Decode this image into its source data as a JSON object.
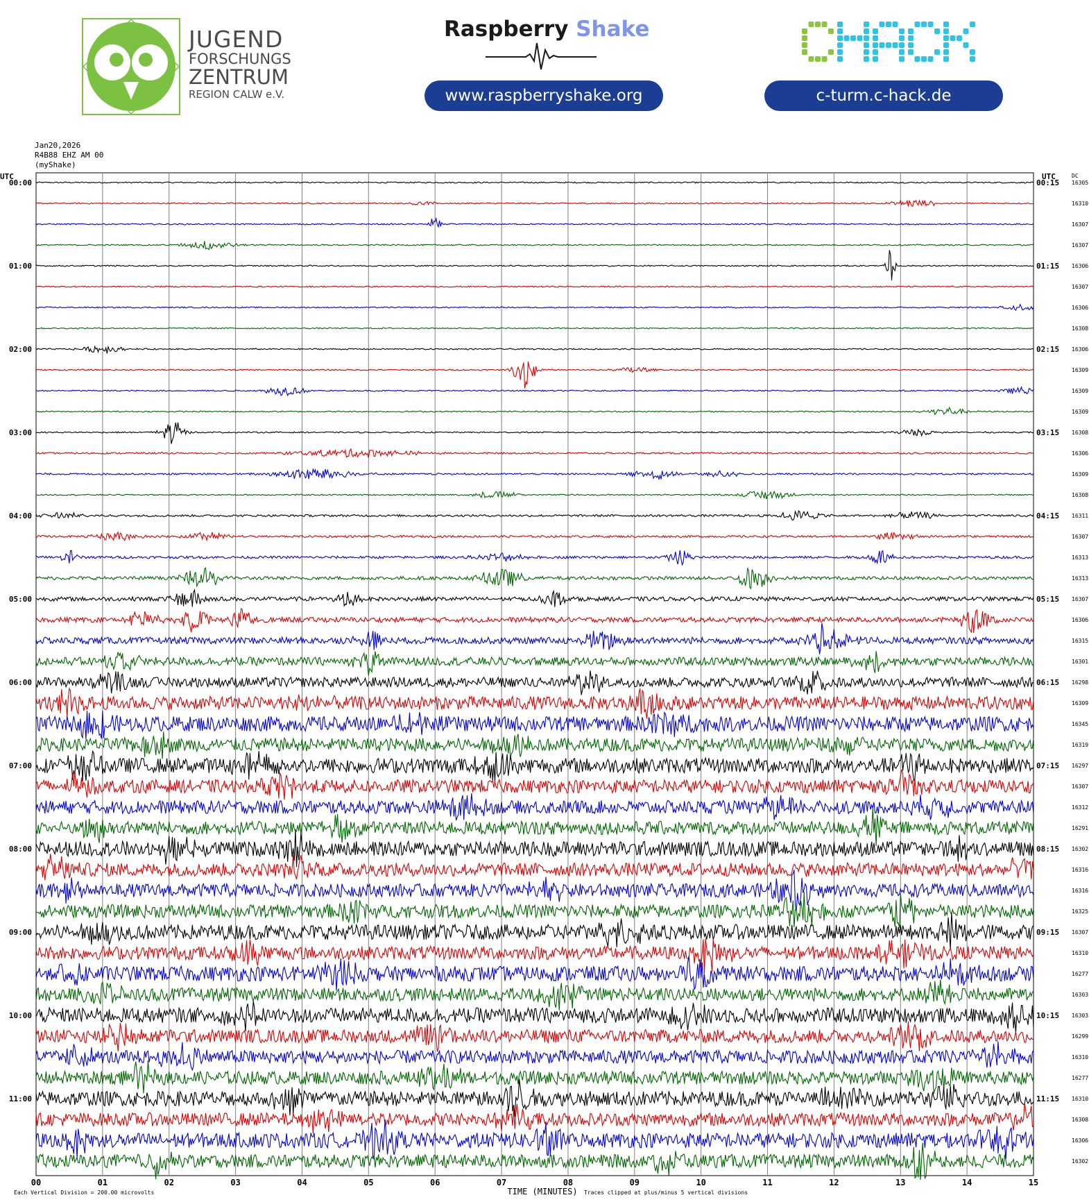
{
  "header": {
    "jfz": {
      "lines": [
        "JUGEND",
        "FORSCHUNGS",
        "ZENTRUM",
        "REGION CALW e.V."
      ]
    },
    "raspberry": {
      "word1": "Raspberry",
      "word2": "Shake",
      "url": "www.raspberryshake.org"
    },
    "chack": {
      "logo_text": "CHACK",
      "url": "c-turm.c-hack.de"
    },
    "colors": {
      "pill": "#1b3d94",
      "jfz_green": "#7cc142",
      "chack_green": "#8cc63f",
      "chack_cyan": "#2ec4e6",
      "shake_blue": "#7f95e8"
    }
  },
  "chart_data": {
    "type": "line",
    "subtype": "helicorder",
    "info_lines": [
      "Jan20,2026",
      "R4B88 EHZ AM 00",
      "(myShake)"
    ],
    "left_axis_label": "UTC",
    "right_axis_label": "UTC",
    "dc_label": "DC",
    "xlabel": "TIME (MINUTES)",
    "x_ticks": [
      "00",
      "01",
      "02",
      "03",
      "04",
      "05",
      "06",
      "07",
      "08",
      "09",
      "10",
      "11",
      "12",
      "13",
      "14",
      "15"
    ],
    "xlim": [
      0,
      15
    ],
    "grid": true,
    "trace_colors": [
      "#000000",
      "#dd0000",
      "#0000dd",
      "#006600"
    ],
    "rows": [
      {
        "left": "00:00",
        "right": "00:15",
        "dc": "16305",
        "noise": 0.15,
        "events": []
      },
      {
        "left": "",
        "right": "",
        "dc": "16310",
        "noise": 0.15,
        "events": [
          [
            5.8,
            0.6,
            0.3
          ],
          [
            13.2,
            0.9,
            0.6
          ]
        ]
      },
      {
        "left": "",
        "right": "",
        "dc": "16307",
        "noise": 0.15,
        "events": [
          [
            6.0,
            1.8,
            0.15
          ]
        ]
      },
      {
        "left": "",
        "right": "",
        "dc": "16307",
        "noise": 0.15,
        "events": [
          [
            2.6,
            1.2,
            0.6
          ]
        ]
      },
      {
        "left": "01:00",
        "right": "01:15",
        "dc": "16306",
        "noise": 0.15,
        "events": [
          [
            12.85,
            4.5,
            0.1
          ]
        ]
      },
      {
        "left": "",
        "right": "",
        "dc": "16307",
        "noise": 0.15,
        "events": []
      },
      {
        "left": "",
        "right": "",
        "dc": "16306",
        "noise": 0.15,
        "events": [
          [
            14.8,
            0.8,
            0.5
          ]
        ]
      },
      {
        "left": "",
        "right": "",
        "dc": "16308",
        "noise": 0.15,
        "events": []
      },
      {
        "left": "02:00",
        "right": "02:15",
        "dc": "16306",
        "noise": 0.15,
        "events": [
          [
            1.0,
            1.0,
            0.5
          ]
        ]
      },
      {
        "left": "",
        "right": "",
        "dc": "16309",
        "noise": 0.15,
        "events": [
          [
            7.35,
            5.0,
            0.25
          ],
          [
            9.0,
            0.8,
            0.4
          ]
        ]
      },
      {
        "left": "",
        "right": "",
        "dc": "16309",
        "noise": 0.15,
        "events": [
          [
            3.75,
            1.2,
            0.5
          ],
          [
            14.8,
            0.8,
            0.5
          ]
        ]
      },
      {
        "left": "",
        "right": "",
        "dc": "16309",
        "noise": 0.15,
        "events": [
          [
            13.7,
            1.0,
            0.5
          ]
        ]
      },
      {
        "left": "03:00",
        "right": "03:15",
        "dc": "16308",
        "noise": 0.15,
        "events": [
          [
            2.05,
            3.0,
            0.3
          ],
          [
            13.2,
            0.8,
            0.5
          ]
        ]
      },
      {
        "left": "",
        "right": "",
        "dc": "16306",
        "noise": 0.2,
        "events": [
          [
            4.8,
            1.0,
            1.5
          ]
        ]
      },
      {
        "left": "",
        "right": "",
        "dc": "16309",
        "noise": 0.2,
        "events": [
          [
            4.2,
            1.5,
            1.0
          ],
          [
            9.3,
            1.2,
            0.6
          ],
          [
            10.3,
            0.8,
            0.5
          ]
        ]
      },
      {
        "left": "",
        "right": "",
        "dc": "16308",
        "noise": 0.15,
        "events": [
          [
            6.9,
            0.9,
            0.6
          ],
          [
            11.0,
            1.2,
            0.6
          ]
        ]
      },
      {
        "left": "04:00",
        "right": "04:15",
        "dc": "16311",
        "noise": 0.25,
        "events": [
          [
            0.4,
            0.8,
            0.5
          ],
          [
            11.5,
            1.2,
            0.6
          ],
          [
            13.2,
            0.8,
            0.6
          ]
        ]
      },
      {
        "left": "",
        "right": "",
        "dc": "16307",
        "noise": 0.25,
        "events": [
          [
            1.2,
            1.0,
            0.6
          ],
          [
            2.6,
            1.0,
            0.6
          ],
          [
            12.9,
            0.8,
            0.6
          ]
        ]
      },
      {
        "left": "",
        "right": "",
        "dc": "16313",
        "noise": 0.3,
        "events": [
          [
            0.5,
            2.0,
            0.2
          ],
          [
            7.0,
            1.0,
            0.6
          ],
          [
            9.7,
            2.0,
            0.3
          ],
          [
            12.7,
            2.0,
            0.3
          ]
        ]
      },
      {
        "left": "",
        "right": "",
        "dc": "16313",
        "noise": 0.4,
        "events": [
          [
            2.5,
            2.5,
            0.5
          ],
          [
            7.0,
            2.5,
            0.5
          ],
          [
            10.8,
            3.0,
            0.4
          ]
        ]
      },
      {
        "left": "05:00",
        "right": "05:15",
        "dc": "16307",
        "noise": 0.5,
        "events": [
          [
            2.3,
            2.5,
            0.4
          ],
          [
            4.7,
            2.0,
            0.3
          ],
          [
            7.8,
            2.0,
            0.3
          ]
        ]
      },
      {
        "left": "",
        "right": "",
        "dc": "16306",
        "noise": 0.6,
        "events": [
          [
            1.6,
            2.5,
            0.4
          ],
          [
            2.4,
            3.0,
            0.4
          ],
          [
            3.1,
            2.5,
            0.3
          ],
          [
            14.1,
            4.0,
            0.4
          ]
        ]
      },
      {
        "left": "",
        "right": "",
        "dc": "16315",
        "noise": 0.8,
        "events": [
          [
            5.0,
            3.0,
            0.3
          ],
          [
            8.5,
            2.5,
            0.5
          ],
          [
            11.8,
            2.5,
            0.4
          ],
          [
            12.0,
            3.0,
            0.4
          ]
        ]
      },
      {
        "left": "",
        "right": "",
        "dc": "16301",
        "noise": 1.0,
        "events": [
          [
            1.3,
            3.0,
            0.4
          ],
          [
            5.0,
            3.0,
            0.3
          ],
          [
            12.6,
            2.5,
            0.4
          ]
        ]
      },
      {
        "left": "06:00",
        "right": "06:15",
        "dc": "16298",
        "noise": 1.2,
        "events": [
          [
            1.1,
            3.0,
            0.4
          ],
          [
            8.3,
            3.0,
            0.4
          ],
          [
            11.7,
            3.0,
            0.4
          ]
        ]
      },
      {
        "left": "",
        "right": "",
        "dc": "16309",
        "noise": 1.6,
        "events": [
          [
            0.5,
            3.0,
            0.4
          ],
          [
            4.1,
            3.0,
            0.4
          ],
          [
            9.2,
            3.0,
            0.5
          ]
        ]
      },
      {
        "left": "",
        "right": "",
        "dc": "16345",
        "noise": 1.8,
        "events": [
          [
            0.9,
            3.5,
            0.4
          ],
          [
            5.6,
            3.0,
            0.5
          ],
          [
            9.5,
            3.0,
            0.5
          ]
        ]
      },
      {
        "left": "",
        "right": "",
        "dc": "16319",
        "noise": 1.6,
        "events": [
          [
            1.8,
            3.0,
            0.4
          ],
          [
            7.2,
            3.0,
            0.5
          ],
          [
            12.2,
            3.0,
            0.4
          ]
        ]
      },
      {
        "left": "07:00",
        "right": "07:15",
        "dc": "16297",
        "noise": 1.8,
        "events": [
          [
            0.7,
            3.5,
            0.4
          ],
          [
            3.4,
            3.0,
            0.6
          ],
          [
            6.9,
            4.0,
            0.4
          ],
          [
            13.2,
            3.0,
            0.4
          ]
        ]
      },
      {
        "left": "",
        "right": "",
        "dc": "16307",
        "noise": 1.6,
        "events": [
          [
            0.6,
            3.0,
            0.4
          ],
          [
            3.7,
            3.0,
            0.4
          ],
          [
            13.1,
            3.0,
            0.4
          ]
        ]
      },
      {
        "left": "",
        "right": "",
        "dc": "16312",
        "noise": 1.6,
        "events": [
          [
            6.4,
            3.0,
            0.5
          ],
          [
            11.2,
            2.5,
            0.5
          ],
          [
            13.5,
            2.5,
            0.5
          ]
        ]
      },
      {
        "left": "",
        "right": "",
        "dc": "16291",
        "noise": 1.6,
        "events": [
          [
            0.9,
            3.0,
            0.4
          ],
          [
            4.6,
            3.0,
            0.4
          ],
          [
            12.6,
            3.5,
            0.4
          ]
        ]
      },
      {
        "left": "08:00",
        "right": "08:15",
        "dc": "16302",
        "noise": 1.8,
        "events": [
          [
            2.1,
            3.0,
            0.5
          ],
          [
            3.9,
            3.5,
            0.4
          ],
          [
            13.8,
            3.5,
            0.4
          ]
        ]
      },
      {
        "left": "",
        "right": "",
        "dc": "16316",
        "noise": 1.6,
        "events": [
          [
            0.3,
            3.0,
            0.4
          ],
          [
            4.0,
            3.0,
            0.4
          ],
          [
            14.9,
            3.5,
            0.4
          ]
        ]
      },
      {
        "left": "",
        "right": "",
        "dc": "16316",
        "noise": 1.6,
        "events": [
          [
            0.5,
            3.0,
            0.4
          ],
          [
            7.7,
            2.5,
            0.5
          ],
          [
            11.4,
            4.5,
            0.5
          ]
        ]
      },
      {
        "left": "",
        "right": "",
        "dc": "16325",
        "noise": 1.6,
        "events": [
          [
            4.8,
            3.0,
            0.4
          ],
          [
            11.5,
            4.5,
            0.5
          ],
          [
            13.0,
            3.5,
            0.4
          ]
        ]
      },
      {
        "left": "09:00",
        "right": "09:15",
        "dc": "16307",
        "noise": 1.8,
        "events": [
          [
            1.0,
            3.0,
            0.4
          ],
          [
            8.8,
            3.0,
            0.6
          ],
          [
            13.8,
            3.5,
            0.4
          ]
        ]
      },
      {
        "left": "",
        "right": "",
        "dc": "16310",
        "noise": 1.6,
        "events": [
          [
            3.2,
            3.0,
            0.4
          ],
          [
            10.1,
            4.0,
            0.5
          ],
          [
            13.0,
            3.0,
            0.5
          ]
        ]
      },
      {
        "left": "",
        "right": "",
        "dc": "16277",
        "noise": 1.8,
        "events": [
          [
            0.5,
            3.0,
            0.4
          ],
          [
            4.5,
            3.5,
            0.5
          ],
          [
            9.9,
            3.5,
            0.5
          ],
          [
            13.8,
            3.0,
            0.5
          ]
        ]
      },
      {
        "left": "",
        "right": "",
        "dc": "16303",
        "noise": 1.6,
        "events": [
          [
            1.0,
            3.0,
            0.4
          ],
          [
            7.9,
            3.0,
            0.5
          ],
          [
            13.6,
            3.5,
            0.4
          ]
        ]
      },
      {
        "left": "10:00",
        "right": "10:15",
        "dc": "16303",
        "noise": 1.8,
        "events": [
          [
            3.1,
            3.0,
            0.4
          ],
          [
            9.8,
            2.5,
            0.6
          ],
          [
            14.8,
            4.0,
            0.5
          ]
        ]
      },
      {
        "left": "",
        "right": "",
        "dc": "16299",
        "noise": 1.6,
        "events": [
          [
            1.2,
            3.0,
            0.4
          ],
          [
            6.0,
            3.5,
            0.5
          ],
          [
            13.2,
            3.0,
            0.5
          ]
        ]
      },
      {
        "left": "",
        "right": "",
        "dc": "16310",
        "noise": 1.6,
        "events": [
          [
            0.6,
            3.0,
            0.4
          ],
          [
            2.2,
            3.0,
            0.5
          ],
          [
            14.4,
            3.0,
            0.5
          ]
        ]
      },
      {
        "left": "",
        "right": "",
        "dc": "16277",
        "noise": 1.6,
        "events": [
          [
            1.6,
            3.0,
            0.4
          ],
          [
            6.1,
            3.0,
            0.5
          ],
          [
            13.5,
            3.0,
            0.5
          ]
        ]
      },
      {
        "left": "11:00",
        "right": "11:15",
        "dc": "16310",
        "noise": 1.8,
        "events": [
          [
            3.8,
            3.0,
            0.5
          ],
          [
            7.2,
            4.5,
            0.4
          ],
          [
            12.1,
            3.0,
            0.5
          ],
          [
            13.7,
            3.0,
            0.4
          ]
        ]
      },
      {
        "left": "",
        "right": "",
        "dc": "16308",
        "noise": 1.6,
        "events": [
          [
            4.3,
            3.0,
            0.4
          ],
          [
            7.2,
            3.5,
            0.4
          ],
          [
            14.9,
            3.0,
            0.4
          ]
        ]
      },
      {
        "left": "",
        "right": "",
        "dc": "16306",
        "noise": 1.8,
        "events": [
          [
            0.6,
            3.0,
            0.4
          ],
          [
            5.2,
            4.5,
            0.4
          ],
          [
            7.7,
            4.5,
            0.4
          ],
          [
            14.5,
            3.5,
            0.5
          ]
        ]
      },
      {
        "left": "",
        "right": "",
        "dc": "16302",
        "noise": 1.6,
        "events": [
          [
            1.8,
            3.0,
            0.4
          ],
          [
            9.5,
            3.0,
            0.4
          ],
          [
            13.3,
            4.0,
            0.4
          ]
        ]
      }
    ],
    "footer_scale": "Each Vertical Division =  200.00 microvolts",
    "footer_clip": "Traces clipped at plus/minus 5 vertical divisions"
  }
}
